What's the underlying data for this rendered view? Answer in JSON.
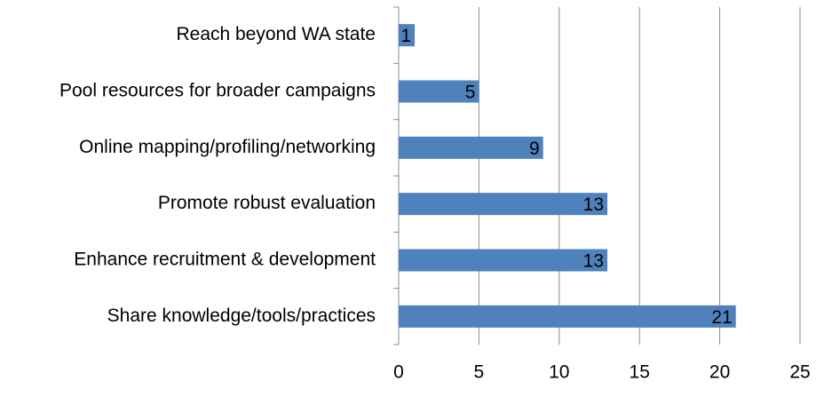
{
  "chart_data": {
    "type": "barh",
    "categories": [
      "Reach beyond WA state",
      "Pool resources for broader campaigns",
      "Online mapping/profiling/networking",
      "Promote robust evaluation",
      "Enhance recruitment & development",
      "Share knowledge/tools/practices"
    ],
    "values": [
      1,
      5,
      9,
      13,
      13,
      21
    ],
    "color": "#4f81bd",
    "xlim": [
      0,
      25
    ],
    "xticks": [
      0,
      5,
      10,
      15,
      20,
      25
    ],
    "grid": true
  }
}
